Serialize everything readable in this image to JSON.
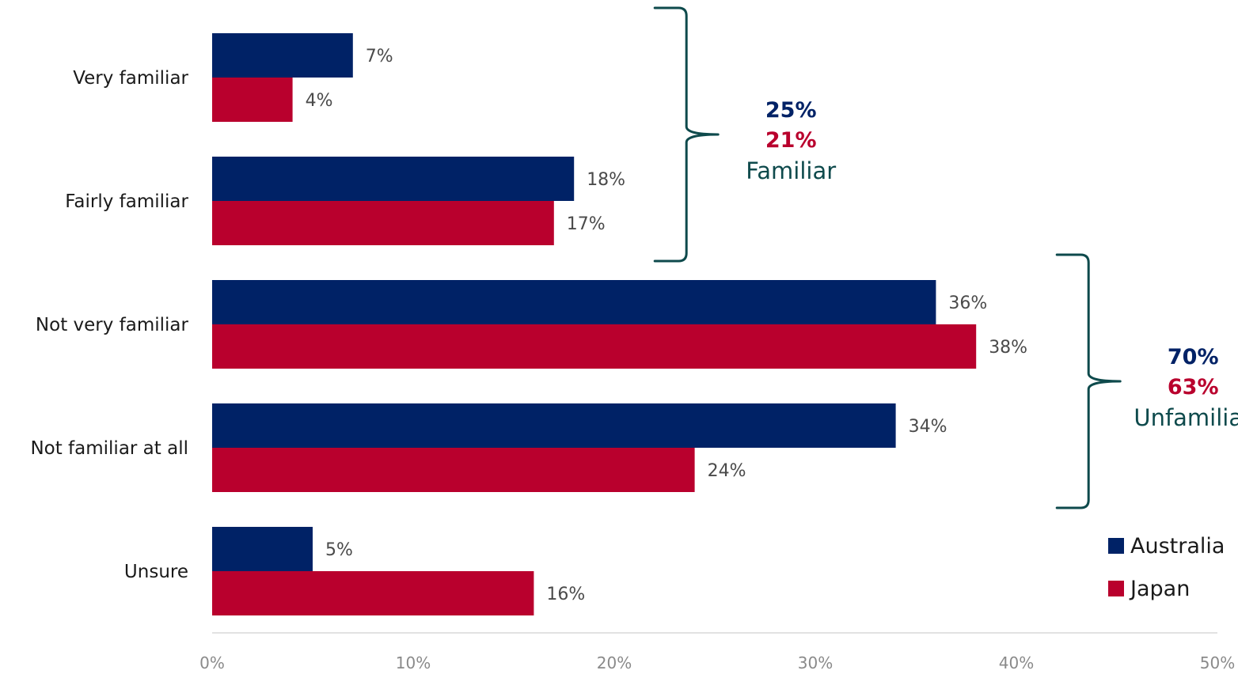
{
  "chart_data": {
    "type": "bar",
    "orientation": "horizontal",
    "categories": [
      "Very familiar",
      "Fairly familiar",
      "Not very familiar",
      "Not familiar at all",
      "Unsure"
    ],
    "series": [
      {
        "name": "Australia",
        "color": "#002266",
        "values": [
          7,
          18,
          36,
          34,
          5
        ],
        "labels": [
          "7%",
          "18%",
          "36%",
          "34%",
          "5%"
        ]
      },
      {
        "name": "Japan",
        "color": "#b9002d",
        "values": [
          4,
          17,
          38,
          24,
          16
        ],
        "labels": [
          "4%",
          "17%",
          "38%",
          "24%",
          "16%"
        ]
      }
    ],
    "xlim": [
      0,
      50
    ],
    "xticks": [
      0,
      10,
      20,
      30,
      40,
      50
    ],
    "xtick_labels": [
      "0%",
      "10%",
      "20%",
      "30%",
      "40%",
      "50%"
    ],
    "legend": {
      "placement": "bottom-right"
    },
    "bracket_color": "#0e4a4c",
    "groups": [
      {
        "name": "Familiar",
        "categories": [
          0,
          1
        ],
        "values": [
          "25%",
          "21%"
        ]
      },
      {
        "name": "Unfamiliar",
        "categories": [
          2,
          3
        ],
        "values": [
          "70%",
          "63%"
        ]
      }
    ]
  }
}
